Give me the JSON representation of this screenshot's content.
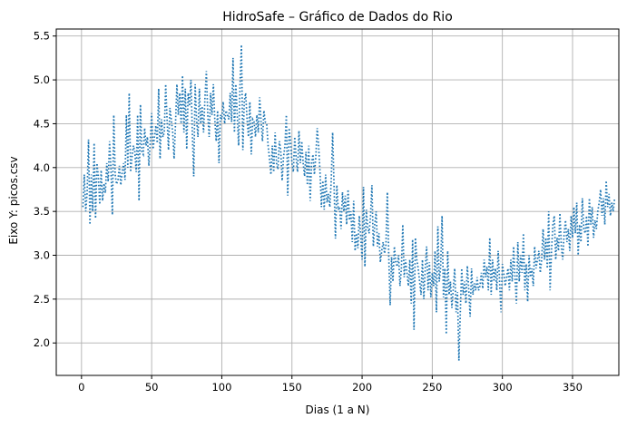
{
  "chart_data": {
    "type": "line",
    "title": "HidroSafe – Gráfico de Dados do Rio",
    "xlabel": "Dias (1 a N)",
    "ylabel": "Eixo Y: picos.csv",
    "xlim": [
      -18,
      383
    ],
    "ylim": [
      1.63,
      5.58
    ],
    "xticks": [
      0,
      50,
      100,
      150,
      200,
      250,
      300,
      350
    ],
    "yticks": [
      2.0,
      2.5,
      3.0,
      3.5,
      4.0,
      4.5,
      5.0,
      5.5
    ],
    "grid": true,
    "line_style": "dotted",
    "colors": {
      "series": "#1f77b4",
      "grid": "#b0b0b0",
      "axes": "#000000"
    },
    "series": [
      {
        "x_start": 1,
        "x_step": 1,
        "values": [
          3.55,
          3.92,
          3.5,
          3.71,
          4.32,
          3.35,
          3.92,
          3.5,
          4.28,
          3.42,
          4.05,
          3.9,
          3.58,
          3.97,
          3.62,
          3.82,
          3.71,
          4.05,
          3.84,
          4.3,
          3.98,
          3.46,
          4.6,
          3.92,
          3.81,
          3.86,
          4.02,
          3.8,
          3.95,
          4.05,
          3.86,
          4.6,
          4.0,
          4.85,
          3.95,
          4.12,
          4.25,
          4.18,
          3.95,
          4.6,
          3.62,
          4.72,
          4.18,
          4.15,
          4.45,
          4.25,
          4.35,
          4.02,
          4.3,
          4.62,
          4.21,
          4.35,
          4.48,
          4.28,
          4.9,
          4.1,
          4.55,
          4.35,
          4.4,
          4.95,
          4.55,
          4.2,
          4.68,
          4.55,
          4.4,
          4.1,
          4.5,
          4.95,
          4.6,
          4.85,
          4.5,
          5.05,
          4.4,
          4.9,
          4.21,
          4.85,
          4.7,
          5.0,
          4.4,
          3.9,
          4.95,
          4.55,
          4.35,
          4.9,
          4.5,
          4.7,
          4.4,
          4.8,
          5.1,
          4.6,
          4.35,
          4.85,
          4.6,
          4.95,
          4.55,
          4.3,
          4.65,
          4.05,
          4.6,
          4.55,
          4.75,
          4.5,
          4.65,
          4.6,
          4.55,
          4.85,
          4.52,
          5.25,
          4.4,
          4.95,
          4.6,
          4.25,
          4.95,
          5.4,
          4.2,
          4.75,
          4.85,
          4.55,
          4.35,
          4.75,
          4.15,
          4.55,
          4.52,
          4.35,
          4.6,
          4.4,
          4.8,
          4.52,
          4.3,
          4.65,
          4.52,
          4.5,
          4.25,
          4.1,
          3.92,
          4.25,
          3.95,
          4.4,
          4.05,
          3.98,
          4.3,
          4.2,
          3.85,
          4.12,
          4.25,
          4.6,
          3.68,
          4.45,
          4.3,
          4.05,
          3.95,
          4.35,
          4.1,
          3.95,
          4.42,
          4.05,
          4.3,
          4.05,
          3.9,
          4.18,
          3.8,
          4.25,
          3.62,
          4.05,
          4.15,
          3.92,
          4.12,
          4.45,
          4.25,
          3.95,
          3.55,
          3.85,
          3.52,
          3.92,
          3.6,
          3.7,
          3.55,
          3.85,
          4.4,
          3.8,
          3.19,
          3.8,
          3.52,
          3.55,
          3.3,
          3.72,
          3.5,
          3.68,
          3.35,
          3.75,
          3.4,
          3.5,
          3.15,
          3.62,
          3.05,
          3.25,
          3.08,
          3.45,
          3.22,
          2.95,
          3.78,
          2.87,
          3.52,
          3.32,
          3.25,
          3.45,
          3.8,
          3.1,
          3.35,
          3.5,
          3.1,
          3.25,
          2.92,
          3.05,
          3.15,
          3.02,
          3.12,
          3.72,
          3.0,
          2.43,
          2.98,
          2.7,
          3.1,
          2.92,
          2.87,
          3.0,
          2.65,
          2.85,
          3.35,
          2.75,
          2.95,
          2.8,
          2.65,
          2.95,
          2.45,
          3.18,
          2.15,
          3.2,
          2.95,
          2.85,
          2.7,
          2.55,
          2.95,
          2.5,
          2.85,
          3.1,
          2.6,
          2.92,
          2.52,
          2.8,
          2.65,
          3.05,
          2.35,
          3.33,
          2.7,
          2.87,
          3.45,
          2.52,
          2.85,
          2.1,
          3.05,
          2.55,
          2.7,
          2.4,
          2.62,
          2.85,
          2.35,
          2.58,
          1.8,
          2.35,
          2.85,
          2.55,
          2.7,
          2.45,
          2.88,
          2.62,
          2.3,
          2.85,
          2.55,
          2.68,
          2.6,
          2.75,
          2.6,
          2.65,
          2.8,
          2.62,
          2.95,
          2.75,
          2.87,
          2.6,
          3.2,
          2.55,
          2.95,
          2.7,
          2.85,
          2.6,
          3.05,
          2.7,
          2.35,
          2.9,
          2.8,
          2.65,
          2.75,
          2.85,
          2.6,
          2.95,
          2.7,
          3.1,
          2.75,
          2.45,
          3.15,
          2.7,
          3.0,
          2.8,
          3.25,
          2.6,
          2.9,
          2.47,
          3.0,
          2.75,
          2.85,
          2.65,
          3.1,
          2.85,
          2.95,
          3.05,
          2.8,
          2.95,
          3.3,
          2.95,
          3.2,
          2.85,
          3.5,
          2.6,
          3.05,
          3.35,
          3.45,
          2.95,
          3.2,
          3.05,
          3.48,
          3.1,
          2.95,
          3.25,
          3.4,
          3.15,
          3.3,
          3.05,
          3.45,
          3.2,
          3.55,
          3.25,
          3.6,
          3.0,
          3.35,
          3.15,
          3.65,
          3.3,
          3.25,
          3.45,
          3.1,
          3.65,
          3.35,
          3.55,
          3.2,
          3.4,
          3.3,
          3.5,
          3.6,
          3.75,
          3.45,
          3.65,
          3.35,
          3.85,
          3.55,
          3.7,
          3.45,
          3.6,
          3.5,
          3.65
        ]
      }
    ]
  }
}
